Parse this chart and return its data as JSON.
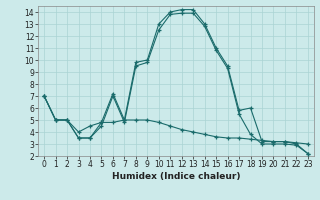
{
  "xlabel": "Humidex (Indice chaleur)",
  "xlim": [
    -0.5,
    23.5
  ],
  "ylim": [
    2,
    14.5
  ],
  "yticks": [
    2,
    3,
    4,
    5,
    6,
    7,
    8,
    9,
    10,
    11,
    12,
    13,
    14
  ],
  "xticks": [
    0,
    1,
    2,
    3,
    4,
    5,
    6,
    7,
    8,
    9,
    10,
    11,
    12,
    13,
    14,
    15,
    16,
    17,
    18,
    19,
    20,
    21,
    22,
    23
  ],
  "bg_color": "#cceaea",
  "grid_color": "#aad4d4",
  "line_color": "#1a6b6b",
  "line_series": [
    [
      7.0,
      5.0,
      5.0,
      3.5,
      3.5,
      4.8,
      7.2,
      5.0,
      9.8,
      10.0,
      13.0,
      14.0,
      14.2,
      14.2,
      13.0,
      11.0,
      9.5,
      5.8,
      6.0,
      3.2,
      3.2,
      3.2,
      3.0,
      2.2
    ],
    [
      7.0,
      5.0,
      5.0,
      4.0,
      4.5,
      4.8,
      4.8,
      5.0,
      5.0,
      5.0,
      4.8,
      4.5,
      4.2,
      4.0,
      3.8,
      3.6,
      3.5,
      3.5,
      3.4,
      3.3,
      3.2,
      3.2,
      3.1,
      3.0
    ],
    [
      7.0,
      5.0,
      5.0,
      3.5,
      3.5,
      4.5,
      7.0,
      4.8,
      9.5,
      9.8,
      12.5,
      13.8,
      13.9,
      13.9,
      12.8,
      10.8,
      9.3,
      5.5,
      3.8,
      3.0,
      3.0,
      3.0,
      2.9,
      2.2
    ]
  ],
  "tick_fontsize": 5.5,
  "xlabel_fontsize": 6.5
}
